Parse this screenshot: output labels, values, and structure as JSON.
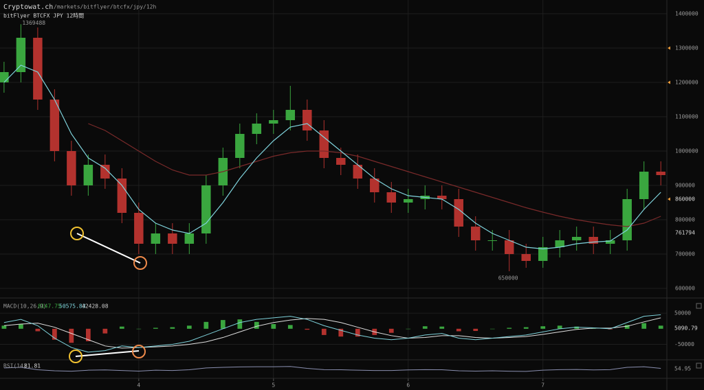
{
  "header": {
    "site": "Cryptowat.ch",
    "path": "/markets/bitflyer/btcfx/jpy/12h",
    "pair": "bitFlyer BTCFX JPY 12時間"
  },
  "chart_data": {
    "type": "candlestick",
    "x": [
      3,
      3.125,
      3.25,
      3.375,
      3.5,
      3.625,
      3.75,
      3.875,
      4,
      4.125,
      4.25,
      4.375,
      4.5,
      4.625,
      4.75,
      4.875,
      5,
      5.125,
      5.25,
      5.375,
      5.5,
      5.625,
      5.75,
      5.875,
      6,
      6.125,
      6.25,
      6.375,
      6.5,
      6.625,
      6.75,
      6.875,
      7,
      7.125,
      7.25,
      7.375,
      7.5,
      7.625,
      7.75,
      7.875
    ],
    "open": [
      1200000,
      1230000,
      1330000,
      1150000,
      1000000,
      900000,
      960000,
      920000,
      820000,
      730000,
      760000,
      730000,
      760000,
      900000,
      980000,
      1050000,
      1080000,
      1090000,
      1120000,
      1060000,
      980000,
      960000,
      920000,
      880000,
      850000,
      860000,
      870000,
      860000,
      780000,
      740000,
      740000,
      700000,
      680000,
      720000,
      740000,
      750000,
      730000,
      740000,
      860000,
      940000
    ],
    "high": [
      1260000,
      1369488,
      1360000,
      1180000,
      1030000,
      990000,
      990000,
      950000,
      850000,
      790000,
      790000,
      790000,
      930000,
      1010000,
      1080000,
      1110000,
      1120000,
      1190000,
      1150000,
      1090000,
      1010000,
      990000,
      950000,
      910000,
      890000,
      900000,
      900000,
      890000,
      810000,
      770000,
      770000,
      730000,
      750000,
      770000,
      780000,
      780000,
      770000,
      890000,
      970000,
      970000
    ],
    "low": [
      1170000,
      1200000,
      1120000,
      970000,
      870000,
      870000,
      890000,
      790000,
      700000,
      700000,
      700000,
      700000,
      730000,
      870000,
      950000,
      1020000,
      1050000,
      1060000,
      1030000,
      950000,
      930000,
      890000,
      850000,
      820000,
      820000,
      830000,
      830000,
      750000,
      710000,
      710000,
      650000,
      660000,
      660000,
      690000,
      710000,
      700000,
      700000,
      710000,
      830000,
      900000
    ],
    "close": [
      1230000,
      1330000,
      1150000,
      1000000,
      900000,
      960000,
      920000,
      820000,
      730000,
      760000,
      730000,
      760000,
      900000,
      980000,
      1050000,
      1080000,
      1090000,
      1120000,
      1060000,
      980000,
      960000,
      920000,
      880000,
      850000,
      860000,
      870000,
      860000,
      780000,
      740000,
      740000,
      700000,
      680000,
      720000,
      740000,
      750000,
      730000,
      740000,
      860000,
      940000,
      930000
    ],
    "up_color": "#3aa63f",
    "down_color": "#b3322e",
    "ma_fast": {
      "color": "#7fd3dc",
      "values": [
        1200000,
        1250000,
        1230000,
        1150000,
        1050000,
        980000,
        950000,
        900000,
        830000,
        790000,
        770000,
        760000,
        790000,
        850000,
        920000,
        980000,
        1030000,
        1070000,
        1080000,
        1040000,
        1000000,
        960000,
        920000,
        890000,
        870000,
        865000,
        860000,
        830000,
        790000,
        760000,
        740000,
        720000,
        715000,
        720000,
        730000,
        735000,
        738000,
        770000,
        830000,
        880000
      ]
    },
    "ma_slow": {
      "color": "#7a2a2a",
      "values": [
        null,
        null,
        null,
        null,
        null,
        1080000,
        1060000,
        1030000,
        1000000,
        970000,
        945000,
        930000,
        930000,
        940000,
        955000,
        970000,
        985000,
        995000,
        1000000,
        1000000,
        995000,
        985000,
        970000,
        955000,
        940000,
        925000,
        910000,
        895000,
        880000,
        865000,
        850000,
        835000,
        822000,
        810000,
        800000,
        792000,
        785000,
        780000,
        790000,
        810000
      ]
    },
    "xlim": [
      2.97,
      7.92
    ],
    "xticks": [
      4,
      5,
      6,
      7
    ],
    "ylim": [
      576000,
      1440000
    ],
    "yticks": [
      600000,
      700000,
      800000,
      900000,
      1000000,
      1100000,
      1200000,
      1300000,
      1400000
    ],
    "price_labels": [
      860000,
      761794
    ],
    "arrow_markers": [
      1300000,
      1200000,
      860000
    ],
    "marker_color": "#e89a3a",
    "grid": true,
    "macd": {
      "label": "MACD(10,26,9)",
      "readout": [
        8147.75,
        50575.83,
        42428.08
      ],
      "macd": [
        20000,
        30000,
        10000,
        -30000,
        -60000,
        -75000,
        -70000,
        -55000,
        -60000,
        -55000,
        -50000,
        -40000,
        -20000,
        0,
        20000,
        30000,
        35000,
        40000,
        30000,
        10000,
        -5000,
        -20000,
        -30000,
        -35000,
        -30000,
        -20000,
        -15000,
        -30000,
        -35000,
        -30000,
        -25000,
        -20000,
        -10000,
        0,
        5000,
        3000,
        0,
        20000,
        40000,
        45000
      ],
      "signal": [
        10000,
        15000,
        18000,
        5000,
        -15000,
        -35000,
        -55000,
        -62000,
        -60000,
        -58000,
        -55000,
        -50000,
        -42000,
        -28000,
        -10000,
        8000,
        20000,
        28000,
        33000,
        30000,
        20000,
        5000,
        -10000,
        -22000,
        -30000,
        -28000,
        -22000,
        -22000,
        -28000,
        -30000,
        -28000,
        -25000,
        -18000,
        -10000,
        -2000,
        2000,
        2000,
        8000,
        22000,
        35000
      ],
      "histogram": [
        10000,
        15000,
        -8000,
        -35000,
        -45000,
        -40000,
        -15000,
        7000,
        0,
        3000,
        5000,
        10000,
        22000,
        28000,
        30000,
        22000,
        15000,
        12000,
        -3000,
        -20000,
        -25000,
        -25000,
        -20000,
        -13000,
        0,
        8000,
        7000,
        -8000,
        -7000,
        0,
        3000,
        5000,
        8000,
        10000,
        7000,
        1000,
        -2000,
        12000,
        18000,
        10000
      ],
      "ylim": [
        -95000,
        92000
      ],
      "yticks": [
        50000,
        -50000
      ],
      "last": 5090.79
    },
    "rsi": {
      "label": "RSI(14)",
      "readout": 81.81,
      "last": 54.95,
      "ylim": [
        0,
        100
      ],
      "values": [
        58,
        62,
        45,
        38,
        35,
        42,
        44,
        40,
        36,
        42,
        40,
        45,
        58,
        62,
        65,
        66,
        66,
        68,
        55,
        46,
        45,
        42,
        40,
        40,
        44,
        46,
        45,
        38,
        36,
        38,
        35,
        34,
        42,
        46,
        47,
        44,
        46,
        62,
        66,
        55
      ]
    }
  }
}
